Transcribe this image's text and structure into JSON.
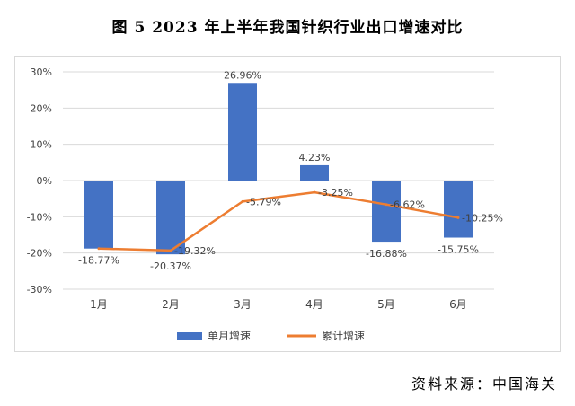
{
  "title": "图 5   2023 年上半年我国针织行业出口增速对比",
  "source": "资料来源：中国海关",
  "colors": {
    "bar": "#4472C4",
    "line": "#ED7D31",
    "grid": "#d9d9d9",
    "text": "#404040"
  },
  "chart_data": {
    "type": "bar",
    "categories": [
      "1月",
      "2月",
      "3月",
      "4月",
      "5月",
      "6月"
    ],
    "ylim": [
      -30,
      30
    ],
    "yticks": [
      30,
      20,
      10,
      0,
      -10,
      -20,
      -30
    ],
    "ytick_labels": [
      "30%",
      "20%",
      "10%",
      "0%",
      "-10%",
      "-20%",
      "-30%"
    ],
    "grid": true,
    "legend_position": "bottom",
    "series": [
      {
        "name": "单月增速",
        "type": "bar",
        "values": [
          -18.77,
          -20.37,
          26.96,
          4.23,
          -16.88,
          -15.75
        ],
        "labels": [
          "-18.77%",
          "-20.37%",
          "26.96%",
          "4.23%",
          "-16.88%",
          "-15.75%"
        ]
      },
      {
        "name": "累计增速",
        "type": "line",
        "values": [
          -18.77,
          -19.32,
          -5.79,
          -3.25,
          -6.62,
          -10.25
        ],
        "labels": [
          "",
          "-19.32%",
          "-5.79%",
          "-3.25%",
          "-6.62%",
          "-10.25%"
        ]
      }
    ]
  }
}
